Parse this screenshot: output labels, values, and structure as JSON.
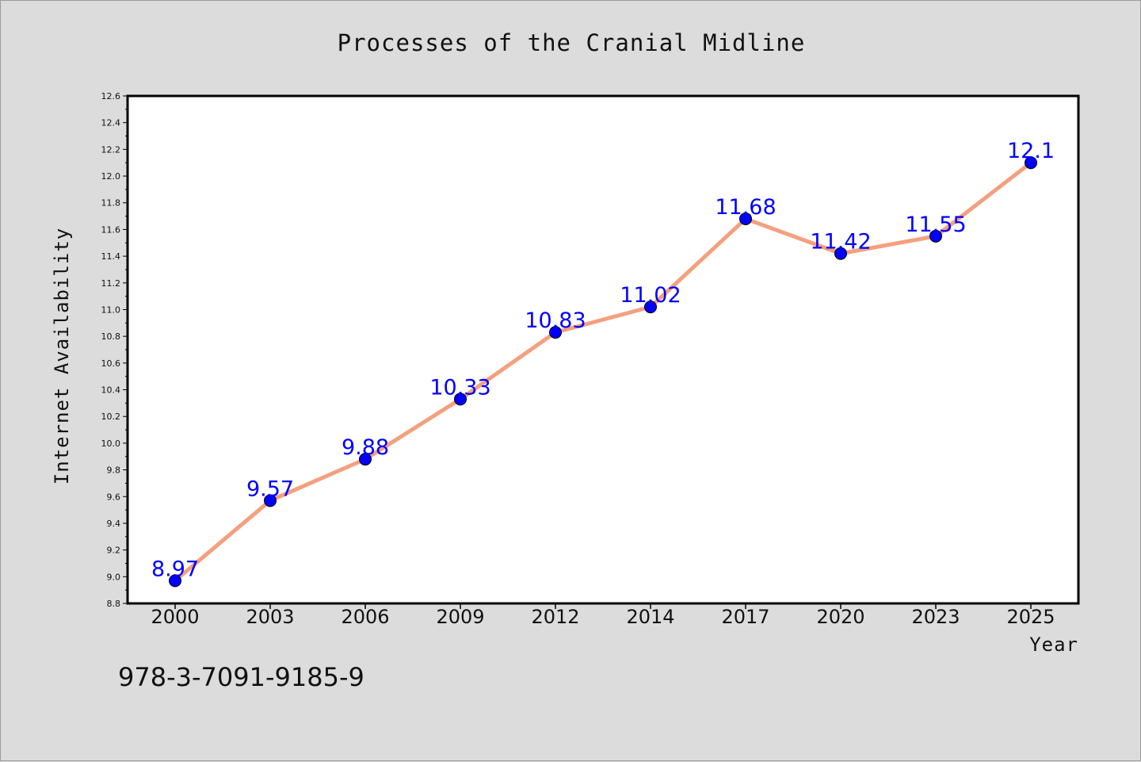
{
  "chart_data": {
    "type": "line",
    "title": "Processes of the Cranial Midline",
    "xlabel": "Year",
    "ylabel": "Internet Availability",
    "categories": [
      "2000",
      "2003",
      "2006",
      "2009",
      "2012",
      "2014",
      "2017",
      "2020",
      "2023",
      "2025"
    ],
    "series": [
      {
        "values": [
          8.97,
          9.57,
          9.88,
          10.33,
          10.83,
          11.02,
          11.68,
          11.42,
          11.55,
          12.1
        ],
        "data_labels": [
          "8.97",
          "9.57",
          "9.88",
          "10.33",
          "10.83",
          "11.02",
          "11.68",
          "11.42",
          "11.55",
          "12.1"
        ],
        "line_color": "#f4a07f",
        "marker_color": "#0000ff"
      }
    ],
    "ylim": [
      8.8,
      12.6
    ],
    "yticks": [
      "8.8",
      "9.0",
      "9.2",
      "9.4",
      "9.6",
      "9.8",
      "10.0",
      "10.2",
      "10.4",
      "10.6",
      "10.8",
      "11.0",
      "11.2",
      "11.4",
      "11.6",
      "11.8",
      "12.0",
      "12.2",
      "12.4",
      "12.6"
    ],
    "grid": false,
    "legend": "none"
  },
  "footer": {
    "isbn": "978-3-7091-9185-9"
  },
  "colors": {
    "background": "#dcdcdc",
    "plot_background": "#ffffff",
    "line": "#f4a07f",
    "marker": "#0000ff",
    "data_label": "#0000ff"
  }
}
